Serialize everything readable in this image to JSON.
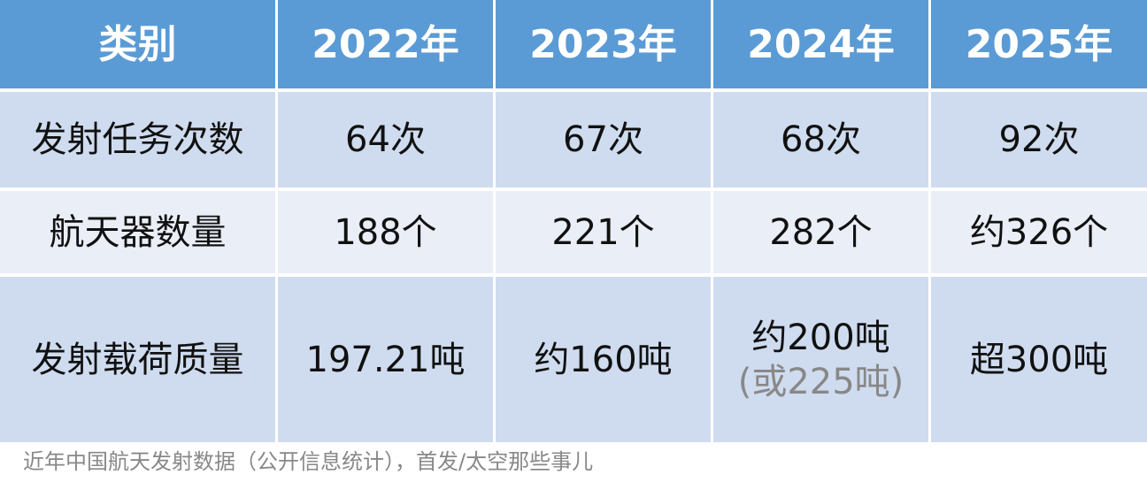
{
  "table": {
    "header": [
      "类别",
      "2022年",
      "2023年",
      "2024年",
      "2025年"
    ],
    "rows": [
      [
        "发射任务次数",
        "64次",
        "67次",
        "68次",
        "92次"
      ],
      [
        "航天器数量",
        "188个",
        "221个",
        "282个",
        "约326个"
      ],
      [
        "发射载荷质量",
        "197.21吨",
        "约160吨",
        {
          "main": "约200吨",
          "alt": "(或225吨)"
        },
        "超300吨"
      ]
    ]
  },
  "footer": "近年中国航天发射数据（公开信息统计），首发/太空那些事儿"
}
